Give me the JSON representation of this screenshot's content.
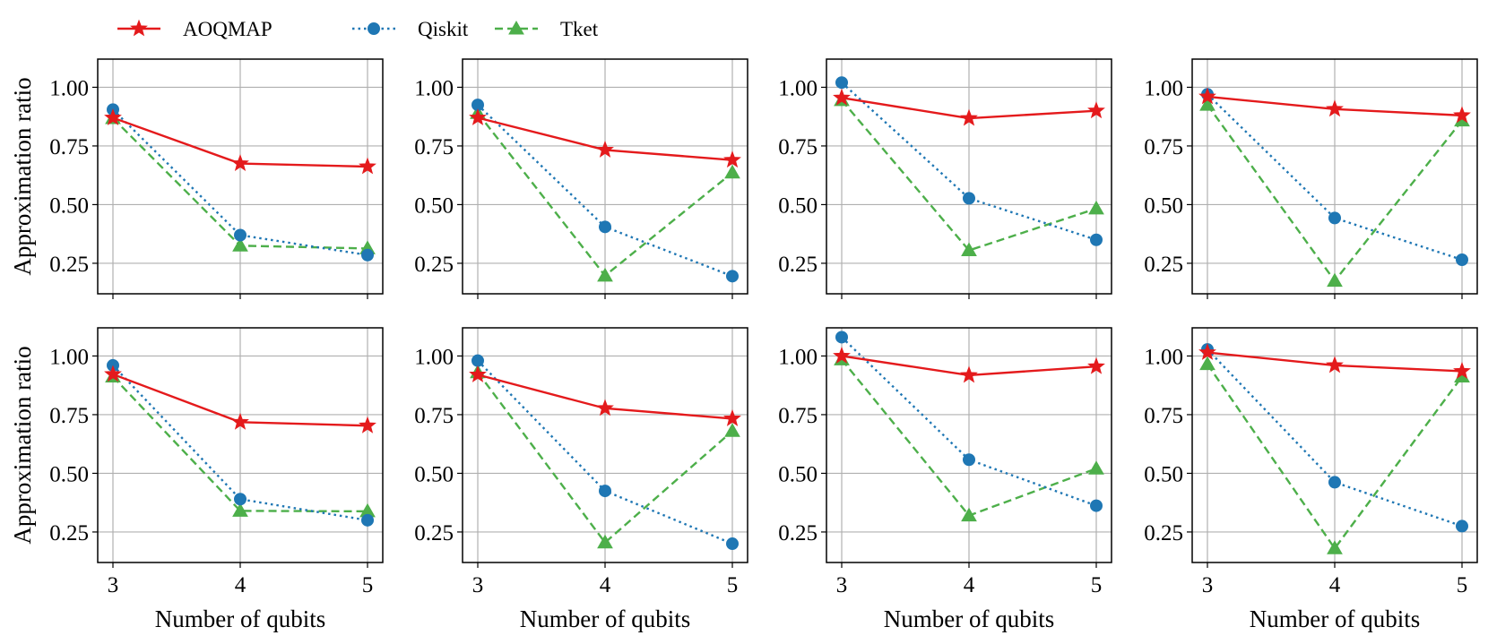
{
  "legend": {
    "items": [
      {
        "name": "AOQMAP",
        "color": "#e41a1c",
        "marker": "star",
        "dash": "solid"
      },
      {
        "name": "Qiskit",
        "color": "#1f77b4",
        "marker": "circle",
        "dash": "dotted"
      },
      {
        "name": "Tket",
        "color": "#4daf4a",
        "marker": "triangle",
        "dash": "dashed"
      }
    ],
    "placement": "top-left, above plots"
  },
  "chart_data": [
    {
      "type": "line",
      "row": 1,
      "col": 1,
      "x": [
        3,
        4,
        5
      ],
      "xlabel": "",
      "ylabel": "Approximation ratio",
      "ylim": [
        0.12,
        1.12
      ],
      "yticks": [
        "0.25",
        "0.50",
        "0.75",
        "1.00"
      ],
      "xticks": [],
      "grid": true,
      "series": [
        {
          "name": "AOQMAP",
          "values": [
            0.87,
            0.675,
            0.662
          ]
        },
        {
          "name": "Qiskit",
          "values": [
            0.905,
            0.37,
            0.285
          ]
        },
        {
          "name": "Tket",
          "values": [
            0.868,
            0.325,
            0.313
          ]
        }
      ]
    },
    {
      "type": "line",
      "row": 1,
      "col": 2,
      "x": [
        3,
        4,
        5
      ],
      "xlabel": "",
      "ylabel": "",
      "ylim": [
        0.12,
        1.12
      ],
      "yticks": [
        "0.25",
        "0.50",
        "0.75",
        "1.00"
      ],
      "xticks": [],
      "grid": true,
      "series": [
        {
          "name": "AOQMAP",
          "values": [
            0.87,
            0.733,
            0.69
          ]
        },
        {
          "name": "Qiskit",
          "values": [
            0.925,
            0.405,
            0.195
          ]
        },
        {
          "name": "Tket",
          "values": [
            0.89,
            0.197,
            0.636
          ]
        }
      ]
    },
    {
      "type": "line",
      "row": 1,
      "col": 3,
      "x": [
        3,
        4,
        5
      ],
      "xlabel": "",
      "ylabel": "",
      "ylim": [
        0.12,
        1.12
      ],
      "yticks": [
        "0.25",
        "0.50",
        "0.75",
        "1.00"
      ],
      "xticks": [],
      "grid": true,
      "series": [
        {
          "name": "AOQMAP",
          "values": [
            0.955,
            0.868,
            0.9
          ]
        },
        {
          "name": "Qiskit",
          "values": [
            1.02,
            0.527,
            0.35
          ]
        },
        {
          "name": "Tket",
          "values": [
            0.945,
            0.305,
            0.483
          ]
        }
      ]
    },
    {
      "type": "line",
      "row": 1,
      "col": 4,
      "x": [
        3,
        4,
        5
      ],
      "xlabel": "",
      "ylabel": "",
      "ylim": [
        0.12,
        1.12
      ],
      "yticks": [
        "0.25",
        "0.50",
        "0.75",
        "1.00"
      ],
      "xticks": [],
      "grid": true,
      "series": [
        {
          "name": "AOQMAP",
          "values": [
            0.96,
            0.907,
            0.88
          ]
        },
        {
          "name": "Qiskit",
          "values": [
            0.97,
            0.443,
            0.265
          ]
        },
        {
          "name": "Tket",
          "values": [
            0.925,
            0.175,
            0.858
          ]
        }
      ]
    },
    {
      "type": "line",
      "row": 2,
      "col": 1,
      "x": [
        3,
        4,
        5
      ],
      "xlabel": "Number of qubits",
      "ylabel": "Approximation ratio",
      "ylim": [
        0.12,
        1.12
      ],
      "yticks": [
        "0.25",
        "0.50",
        "0.75",
        "1.00"
      ],
      "xticks": [
        "3",
        "4",
        "5"
      ],
      "grid": true,
      "series": [
        {
          "name": "AOQMAP",
          "values": [
            0.922,
            0.718,
            0.703
          ]
        },
        {
          "name": "Qiskit",
          "values": [
            0.96,
            0.39,
            0.3
          ]
        },
        {
          "name": "Tket",
          "values": [
            0.912,
            0.34,
            0.338
          ]
        }
      ]
    },
    {
      "type": "line",
      "row": 2,
      "col": 2,
      "x": [
        3,
        4,
        5
      ],
      "xlabel": "Number of qubits",
      "ylabel": "",
      "ylim": [
        0.12,
        1.12
      ],
      "yticks": [
        "0.25",
        "0.50",
        "0.75",
        "1.00"
      ],
      "xticks": [
        "3",
        "4",
        "5"
      ],
      "grid": true,
      "series": [
        {
          "name": "AOQMAP",
          "values": [
            0.92,
            0.777,
            0.733
          ]
        },
        {
          "name": "Qiskit",
          "values": [
            0.98,
            0.425,
            0.2
          ]
        },
        {
          "name": "Tket",
          "values": [
            0.93,
            0.205,
            0.68
          ]
        }
      ]
    },
    {
      "type": "line",
      "row": 2,
      "col": 3,
      "x": [
        3,
        4,
        5
      ],
      "xlabel": "Number of qubits",
      "ylabel": "",
      "ylim": [
        0.12,
        1.12
      ],
      "yticks": [
        "0.25",
        "0.50",
        "0.75",
        "1.00"
      ],
      "xticks": [
        "3",
        "4",
        "5"
      ],
      "grid": true,
      "series": [
        {
          "name": "AOQMAP",
          "values": [
            1.0,
            0.918,
            0.955
          ]
        },
        {
          "name": "Qiskit",
          "values": [
            1.08,
            0.558,
            0.362
          ]
        },
        {
          "name": "Tket",
          "values": [
            0.985,
            0.32,
            0.52
          ]
        }
      ]
    },
    {
      "type": "line",
      "row": 2,
      "col": 4,
      "x": [
        3,
        4,
        5
      ],
      "xlabel": "Number of qubits",
      "ylabel": "",
      "ylim": [
        0.12,
        1.12
      ],
      "yticks": [
        "0.25",
        "0.50",
        "0.75",
        "1.00"
      ],
      "xticks": [
        "3",
        "4",
        "5"
      ],
      "grid": true,
      "series": [
        {
          "name": "AOQMAP",
          "values": [
            1.015,
            0.96,
            0.935
          ]
        },
        {
          "name": "Qiskit",
          "values": [
            1.028,
            0.462,
            0.275
          ]
        },
        {
          "name": "Tket",
          "values": [
            0.965,
            0.18,
            0.912
          ]
        }
      ]
    }
  ]
}
